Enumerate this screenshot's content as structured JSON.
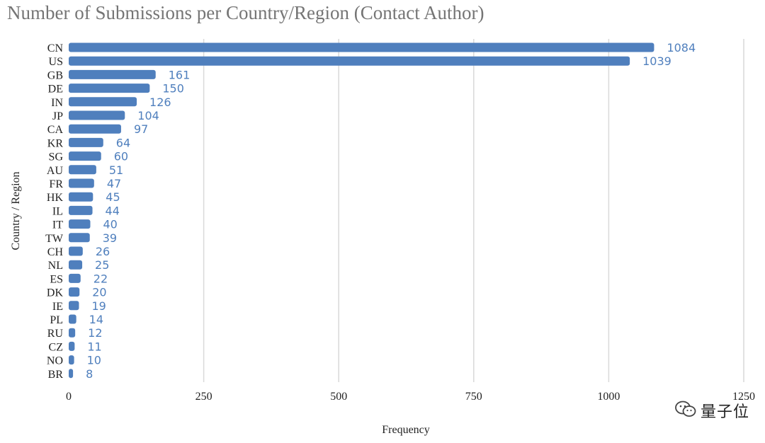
{
  "chart_data": {
    "type": "bar",
    "orientation": "horizontal",
    "title": "Number of Submissions per Country/Region (Contact Author)",
    "xlabel": "Frequency",
    "ylabel": "Country / Region",
    "categories": [
      "CN",
      "US",
      "GB",
      "DE",
      "IN",
      "JP",
      "CA",
      "KR",
      "SG",
      "AU",
      "FR",
      "HK",
      "IL",
      "IT",
      "TW",
      "CH",
      "NL",
      "ES",
      "DK",
      "IE",
      "PL",
      "RU",
      "CZ",
      "NO",
      "BR"
    ],
    "values": [
      1084,
      1039,
      161,
      150,
      126,
      104,
      97,
      64,
      60,
      51,
      47,
      45,
      44,
      40,
      39,
      26,
      25,
      22,
      20,
      19,
      14,
      12,
      11,
      10,
      8
    ],
    "xlim": [
      0,
      1250
    ],
    "xticks": [
      0,
      250,
      500,
      750,
      1000,
      1250
    ],
    "grid": "vertical",
    "legend": "none",
    "colors": {
      "bar": "#4f7fbd",
      "data_label": "#4f7fbd",
      "grid": "#d9d9d9",
      "title": "#757575"
    }
  },
  "watermark": {
    "icon": "wechat-icon",
    "text": "量子位"
  }
}
